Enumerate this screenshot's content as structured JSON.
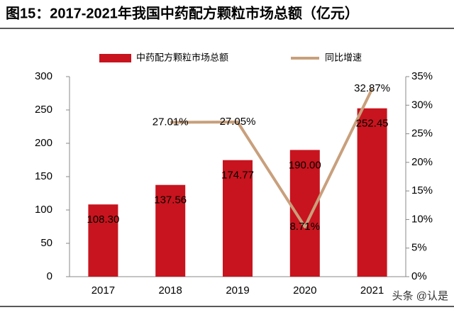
{
  "chart_data": {
    "type": "bar+line",
    "title": "图15：2017-2021年我国中药配方颗粒市场总额（亿元）",
    "categories": [
      "2017",
      "2018",
      "2019",
      "2020",
      "2021"
    ],
    "series": [
      {
        "name": "中药配方颗粒市场总额",
        "type": "bar",
        "color": "#c8141e",
        "values": [
          108.3,
          137.56,
          174.77,
          190.0,
          252.45
        ],
        "value_labels": [
          "108.30",
          "137.56",
          "174.77",
          "190.00",
          "252.45"
        ]
      },
      {
        "name": "同比增速",
        "type": "line",
        "axis": "y2",
        "color": "#c8a07c",
        "values": [
          null,
          27.01,
          27.05,
          8.71,
          32.87
        ],
        "value_labels": [
          null,
          "27.01%",
          "27.05%",
          "8.71%",
          "32.87%"
        ]
      }
    ],
    "ylim": [
      0,
      300
    ],
    "yticks": [
      0,
      50,
      100,
      150,
      200,
      250,
      300
    ],
    "y2lim": [
      0,
      35
    ],
    "y2ticks": [
      {
        "value": 0,
        "label": "0%"
      },
      {
        "value": 5,
        "label": "5%"
      },
      {
        "value": 10,
        "label": "10%"
      },
      {
        "value": 15,
        "label": "15%"
      },
      {
        "value": 20,
        "label": "20%"
      },
      {
        "value": 25,
        "label": "25%"
      },
      {
        "value": 30,
        "label": "30%"
      },
      {
        "value": 35,
        "label": "35%"
      }
    ],
    "legend": "top",
    "watermark": "头条 @认是"
  }
}
